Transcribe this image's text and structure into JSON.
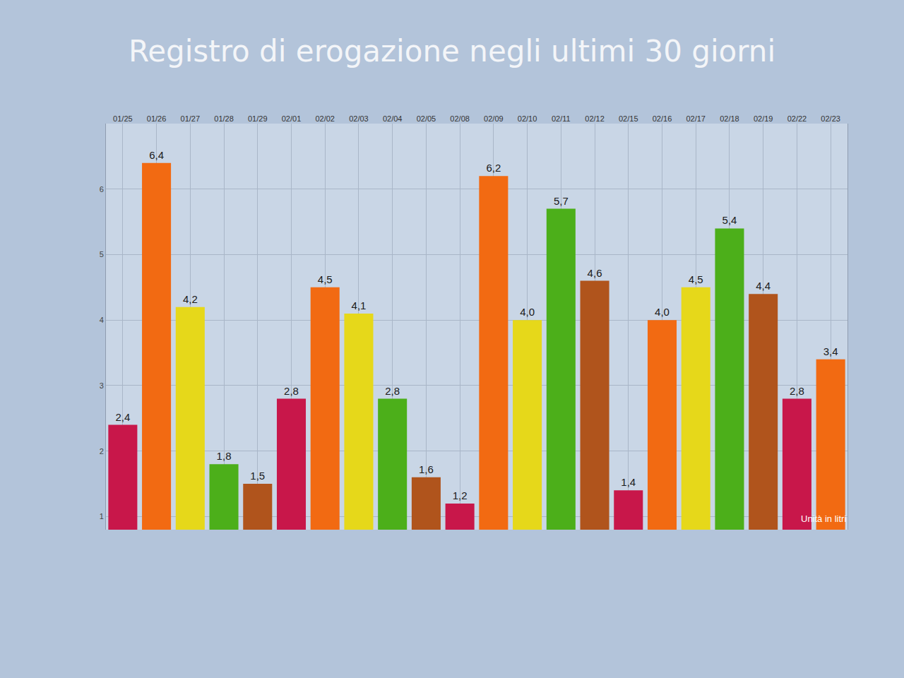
{
  "chart_data": {
    "type": "bar",
    "title": "Registro di erogazione negli ultimi 30 giorni",
    "categories": [
      "01/25",
      "01/26",
      "01/27",
      "01/28",
      "01/29",
      "02/01",
      "02/02",
      "02/03",
      "02/04",
      "02/05",
      "02/08",
      "02/09",
      "02/10",
      "02/11",
      "02/12",
      "02/15",
      "02/16",
      "02/17",
      "02/18",
      "02/19",
      "02/22",
      "02/23"
    ],
    "values": [
      2.4,
      6.4,
      4.2,
      1.8,
      1.5,
      2.8,
      4.5,
      4.1,
      2.8,
      1.6,
      1.2,
      6.2,
      4.0,
      5.7,
      4.6,
      1.4,
      4.0,
      4.5,
      5.4,
      4.4,
      2.8,
      3.4
    ],
    "value_labels": [
      "2,4",
      "6,4",
      "4,2",
      "1,8",
      "1,5",
      "2,8",
      "4,5",
      "4,1",
      "2,8",
      "1,6",
      "1,2",
      "6,2",
      "4,0",
      "5,7",
      "4,6",
      "1,4",
      "4,0",
      "4,5",
      "5,4",
      "4,4",
      "2,8",
      "3,4"
    ],
    "colors": [
      "#c8174a",
      "#f26a12",
      "#e6d81a",
      "#4caf1a",
      "#b0541c",
      "#c8174a",
      "#f26a12",
      "#e6d81a",
      "#4caf1a",
      "#b0541c",
      "#c8174a",
      "#f26a12",
      "#e6d81a",
      "#4caf1a",
      "#b0541c",
      "#c8174a",
      "#f26a12",
      "#e6d81a",
      "#4caf1a",
      "#b0541c",
      "#c8174a",
      "#f26a12"
    ],
    "ylim": [
      0.8,
      7
    ],
    "yticks": [
      1,
      2,
      3,
      4,
      5,
      6
    ],
    "grid": true,
    "data_labels": true,
    "annotations": [
      {
        "text": "Unità in litri"
      }
    ]
  }
}
